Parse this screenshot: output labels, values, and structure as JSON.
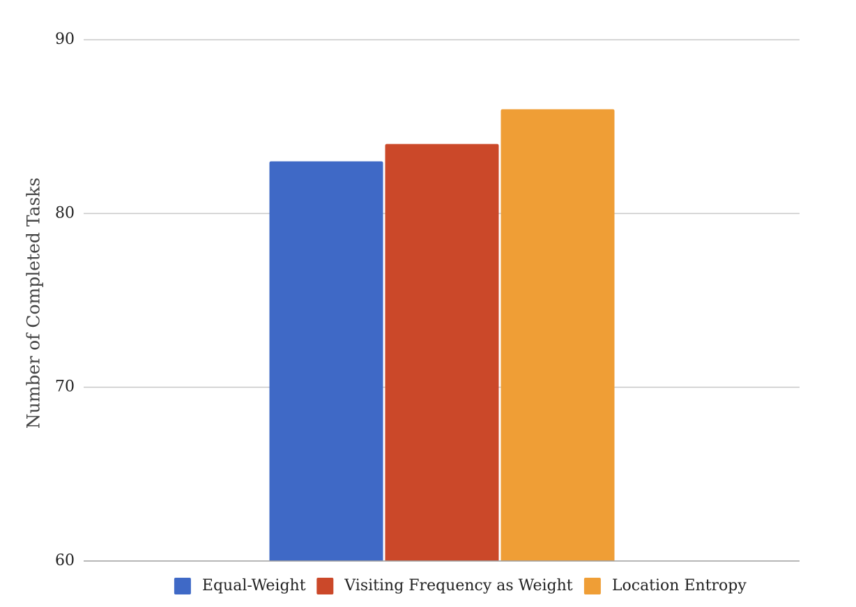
{
  "chart_data": {
    "type": "bar",
    "title": "",
    "xlabel": "",
    "ylabel": "Number of Completed Tasks",
    "ylim": [
      60,
      90
    ],
    "yticks": [
      "60",
      "70",
      "80",
      "90"
    ],
    "grid": true,
    "legend_position": "bottom",
    "series": [
      {
        "name": "Equal-Weight",
        "value": 83,
        "color": "#3f69c6"
      },
      {
        "name": "Visiting Frequency as Weight",
        "value": 84,
        "color": "#cb4829"
      },
      {
        "name": "Location Entropy",
        "value": 86,
        "color": "#ef9e36"
      }
    ]
  }
}
